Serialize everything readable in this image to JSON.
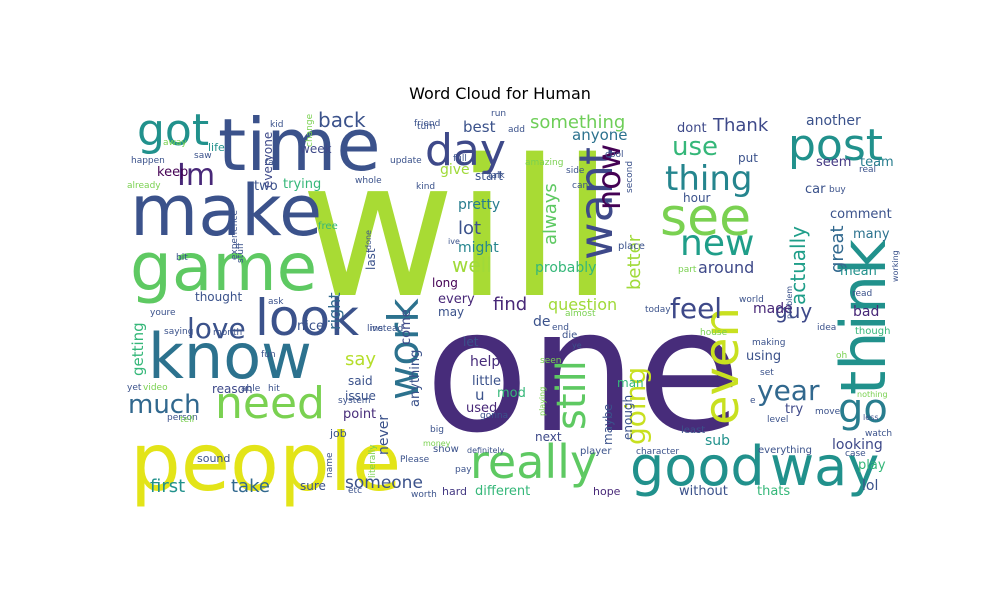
{
  "chart_data": {
    "type": "wordcloud",
    "title": "Word Cloud for Human",
    "words": [
      {
        "text": "will",
        "color": "#a8db34"
      },
      {
        "text": "one",
        "color": "#472c7a"
      },
      {
        "text": "people",
        "color": "#e3e418"
      },
      {
        "text": "time",
        "color": "#3b528b"
      },
      {
        "text": "make",
        "color": "#3b528b"
      },
      {
        "text": "game",
        "color": "#5ec962"
      },
      {
        "text": "know",
        "color": "#2c728e"
      },
      {
        "text": "think",
        "color": "#21918c"
      },
      {
        "text": "good",
        "color": "#21918c"
      },
      {
        "text": "way",
        "color": "#21918c"
      },
      {
        "text": "really",
        "color": "#5ec962"
      },
      {
        "text": "see",
        "color": "#7ad151"
      },
      {
        "text": "look",
        "color": "#3b528b"
      },
      {
        "text": "even",
        "color": "#c8e020"
      },
      {
        "text": "want",
        "color": "#3e4989"
      },
      {
        "text": "post",
        "color": "#21918c"
      },
      {
        "text": "need",
        "color": "#7ad151"
      },
      {
        "text": "work",
        "color": "#2c728e"
      },
      {
        "text": "got",
        "color": "#21918c"
      },
      {
        "text": "day",
        "color": "#3e4989"
      },
      {
        "text": "new",
        "color": "#1f9e89"
      },
      {
        "text": "thing",
        "color": "#25858e"
      },
      {
        "text": "still",
        "color": "#5ec962"
      },
      {
        "text": "go",
        "color": "#287d8e"
      },
      {
        "text": "now",
        "color": "#440154"
      },
      {
        "text": "Im",
        "color": "#482878"
      },
      {
        "text": "love",
        "color": "#3b528b"
      },
      {
        "text": "much",
        "color": "#31688e"
      },
      {
        "text": "feel",
        "color": "#3e4989"
      },
      {
        "text": "year",
        "color": "#31688e"
      },
      {
        "text": "going",
        "color": "#c8e020"
      },
      {
        "text": "use",
        "color": "#35b779"
      },
      {
        "text": "back",
        "color": "#3b528b"
      },
      {
        "text": "first",
        "color": "#21918c"
      },
      {
        "text": "take",
        "color": "#31688e"
      },
      {
        "text": "something",
        "color": "#6ece58"
      },
      {
        "text": "always",
        "color": "#5ec962"
      },
      {
        "text": "better",
        "color": "#a0da39"
      },
      {
        "text": "actually",
        "color": "#1f9e89"
      },
      {
        "text": "great",
        "color": "#31688e"
      },
      {
        "text": "say",
        "color": "#b5de2b"
      },
      {
        "text": "someone",
        "color": "#3b528b"
      },
      {
        "text": "really",
        "color": "#5ec962"
      },
      {
        "text": "guy",
        "color": "#3e4989"
      },
      {
        "text": "Thank",
        "color": "#3e4989"
      },
      {
        "text": "well",
        "color": "#a0da39"
      },
      {
        "text": "lot",
        "color": "#3b528b"
      },
      {
        "text": "might",
        "color": "#25858e"
      },
      {
        "text": "find",
        "color": "#482878"
      },
      {
        "text": "question",
        "color": "#a0da39"
      },
      {
        "text": "probably",
        "color": "#35b779"
      },
      {
        "text": "around",
        "color": "#3e4989"
      },
      {
        "text": "made",
        "color": "#482878"
      },
      {
        "text": "right",
        "color": "#31688e"
      },
      {
        "text": "pretty",
        "color": "#287d8e"
      },
      {
        "text": "best",
        "color": "#3b528b"
      },
      {
        "text": "give",
        "color": "#a0da39"
      },
      {
        "text": "anyone",
        "color": "#2c728e"
      },
      {
        "text": "dont",
        "color": "#3e4989"
      },
      {
        "text": "another",
        "color": "#3b528b"
      },
      {
        "text": "seem",
        "color": "#443983"
      },
      {
        "text": "team",
        "color": "#287d8e"
      },
      {
        "text": "comment",
        "color": "#3b528b"
      },
      {
        "text": "many",
        "color": "#2c728e"
      },
      {
        "text": "mean",
        "color": "#21918c"
      },
      {
        "text": "bad",
        "color": "#482878"
      },
      {
        "text": "looking",
        "color": "#3e4989"
      },
      {
        "text": "play",
        "color": "#35b779"
      },
      {
        "text": "lol",
        "color": "#3b528b"
      },
      {
        "text": "thats",
        "color": "#35b779"
      },
      {
        "text": "without",
        "color": "#3b528b"
      },
      {
        "text": "hope",
        "color": "#482878"
      },
      {
        "text": "different",
        "color": "#35b779"
      },
      {
        "text": "hard",
        "color": "#443983"
      },
      {
        "text": "used",
        "color": "#482878"
      },
      {
        "text": "help",
        "color": "#472c7a"
      },
      {
        "text": "little",
        "color": "#3b528b"
      },
      {
        "text": "never",
        "color": "#3b528b"
      },
      {
        "text": "anything",
        "color": "#3b528b"
      },
      {
        "text": "every",
        "color": "#482878"
      },
      {
        "text": "long",
        "color": "#440154"
      },
      {
        "text": "nice",
        "color": "#3b528b"
      },
      {
        "text": "keep",
        "color": "#440154"
      },
      {
        "text": "life",
        "color": "#21918c"
      },
      {
        "text": "two",
        "color": "#3b528b"
      },
      {
        "text": "trying",
        "color": "#35b779"
      },
      {
        "text": "week",
        "color": "#3e4989"
      },
      {
        "text": "last",
        "color": "#3b528b"
      },
      {
        "text": "thought",
        "color": "#3b528b"
      },
      {
        "text": "getting",
        "color": "#35b779"
      },
      {
        "text": "said",
        "color": "#3b528b"
      },
      {
        "text": "issue",
        "color": "#3b528b"
      },
      {
        "text": "point",
        "color": "#472c7a"
      },
      {
        "text": "reason",
        "color": "#3e4989"
      },
      {
        "text": "sure",
        "color": "#3b528b"
      },
      {
        "text": "job",
        "color": "#3b528b"
      },
      {
        "text": "sound",
        "color": "#3b528b"
      },
      {
        "text": "next",
        "color": "#3e4989"
      },
      {
        "text": "show",
        "color": "#3b528b"
      },
      {
        "text": "sub",
        "color": "#21918c"
      },
      {
        "text": "try",
        "color": "#3e4989"
      },
      {
        "text": "enough",
        "color": "#3b528b"
      },
      {
        "text": "maybe",
        "color": "#3b528b"
      },
      {
        "text": "man",
        "color": "#35b779"
      },
      {
        "text": "using",
        "color": "#3b528b"
      },
      {
        "text": "u",
        "color": "#3b528b"
      },
      {
        "text": "de",
        "color": "#3b528b"
      },
      {
        "text": "may",
        "color": "#3b528b"
      },
      {
        "text": "let",
        "color": "#3b528b"
      },
      {
        "text": "mod",
        "color": "#35b779"
      },
      {
        "text": "come",
        "color": "#3e4989"
      },
      {
        "text": "hour",
        "color": "#3b528b"
      },
      {
        "text": "car",
        "color": "#3b528b"
      },
      {
        "text": "put",
        "color": "#3b528b"
      },
      {
        "text": "start",
        "color": "#3b528b"
      },
      {
        "text": "everyone",
        "color": "#3e4989"
      },
      {
        "text": "experience",
        "color": "#3b528b"
      },
      {
        "text": "free",
        "color": "#35b779"
      },
      {
        "text": "stuff",
        "color": "#3b528b"
      },
      {
        "text": "bit",
        "color": "#3b528b"
      },
      {
        "text": "ask",
        "color": "#3b528b"
      },
      {
        "text": "month",
        "color": "#3b528b"
      },
      {
        "text": "youre",
        "color": "#3b528b"
      },
      {
        "text": "saying",
        "color": "#3b528b"
      },
      {
        "text": "yet",
        "color": "#3b528b"
      },
      {
        "text": "video",
        "color": "#7ad151"
      },
      {
        "text": "person",
        "color": "#3b528b"
      },
      {
        "text": "tell",
        "color": "#7ad151"
      },
      {
        "text": "able",
        "color": "#3b528b"
      },
      {
        "text": "hit",
        "color": "#3b528b"
      },
      {
        "text": "system",
        "color": "#3b528b"
      },
      {
        "text": "money",
        "color": "#7ad151"
      },
      {
        "text": "name",
        "color": "#3b528b"
      },
      {
        "text": "literally",
        "color": "#7ad151"
      },
      {
        "text": "etc",
        "color": "#3b528b"
      },
      {
        "text": "Please",
        "color": "#3b528b"
      },
      {
        "text": "worth",
        "color": "#3b528b"
      },
      {
        "text": "pay",
        "color": "#3b528b"
      },
      {
        "text": "definitely",
        "color": "#3b528b"
      },
      {
        "text": "big",
        "color": "#3b528b"
      },
      {
        "text": "player",
        "color": "#3b528b"
      },
      {
        "text": "character",
        "color": "#3b528b"
      },
      {
        "text": "least",
        "color": "#3b528b"
      },
      {
        "text": "level",
        "color": "#3b528b"
      },
      {
        "text": "everything",
        "color": "#3b528b"
      },
      {
        "text": "case",
        "color": "#3b528b"
      },
      {
        "text": "watch",
        "color": "#3b528b"
      },
      {
        "text": "less",
        "color": "#3b528b"
      },
      {
        "text": "nothing",
        "color": "#7ad151"
      },
      {
        "text": "move",
        "color": "#3b528b"
      },
      {
        "text": "gonna",
        "color": "#3b528b"
      },
      {
        "text": "playing",
        "color": "#7ad151"
      },
      {
        "text": "live",
        "color": "#3b528b"
      },
      {
        "text": "instead",
        "color": "#3b528b"
      },
      {
        "text": "fun",
        "color": "#3b528b"
      },
      {
        "text": "end",
        "color": "#3b528b"
      },
      {
        "text": "almost",
        "color": "#7ad151"
      },
      {
        "text": "today",
        "color": "#3b528b"
      },
      {
        "text": "world",
        "color": "#3b528b"
      },
      {
        "text": "house",
        "color": "#7ad151"
      },
      {
        "text": "making",
        "color": "#3b528b"
      },
      {
        "text": "problem",
        "color": "#3b528b"
      },
      {
        "text": "idea",
        "color": "#3b528b"
      },
      {
        "text": "oh",
        "color": "#7ad151"
      },
      {
        "text": "though",
        "color": "#35b779"
      },
      {
        "text": "read",
        "color": "#3b528b"
      },
      {
        "text": "working",
        "color": "#3b528b"
      },
      {
        "text": "part",
        "color": "#7ad151"
      },
      {
        "text": "place",
        "color": "#3b528b"
      },
      {
        "text": "seen",
        "color": "#7ad151"
      },
      {
        "text": "die",
        "color": "#3b528b"
      },
      {
        "text": "ye",
        "color": "#3b528b"
      },
      {
        "text": "done",
        "color": "#3b528b"
      },
      {
        "text": "ive",
        "color": "#3b528b"
      },
      {
        "text": "cant",
        "color": "#3b528b"
      },
      {
        "text": "side",
        "color": "#3b528b"
      },
      {
        "text": "second",
        "color": "#3b528b"
      },
      {
        "text": "cool",
        "color": "#3b528b"
      },
      {
        "text": "amazing",
        "color": "#7ad151"
      },
      {
        "text": "kind",
        "color": "#3b528b"
      },
      {
        "text": "whole",
        "color": "#3b528b"
      },
      {
        "text": "talk",
        "color": "#3b528b"
      },
      {
        "text": "full",
        "color": "#3b528b"
      },
      {
        "text": "update",
        "color": "#3b528b"
      },
      {
        "text": "change",
        "color": "#7ad151"
      },
      {
        "text": "far",
        "color": "#3b528b"
      },
      {
        "text": "saw",
        "color": "#3b528b"
      },
      {
        "text": "happen",
        "color": "#3b528b"
      },
      {
        "text": "already",
        "color": "#7ad151"
      },
      {
        "text": "away",
        "color": "#7ad151"
      },
      {
        "text": "kid",
        "color": "#3b528b"
      },
      {
        "text": "friend",
        "color": "#3b528b"
      },
      {
        "text": "turn",
        "color": "#3b528b"
      },
      {
        "text": "run",
        "color": "#3b528b"
      },
      {
        "text": "add",
        "color": "#3b528b"
      },
      {
        "text": "buy",
        "color": "#3b528b"
      },
      {
        "text": "real",
        "color": "#3b528b"
      },
      {
        "text": "set",
        "color": "#3b528b"
      },
      {
        "text": "e",
        "color": "#3b528b"
      }
    ]
  }
}
